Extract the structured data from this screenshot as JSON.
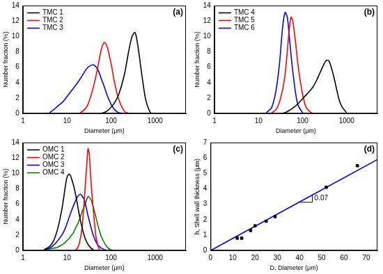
{
  "chart_data": [
    {
      "type": "line",
      "title": "(a)",
      "x_label": "Diameter (μm)",
      "y_label": "Number fraction (%)",
      "log": "x",
      "grid": false,
      "legend": "upper left",
      "xlim": [
        1,
        5000
      ],
      "xticks": [
        1,
        10,
        100,
        1000
      ],
      "ylim": [
        0,
        14
      ],
      "yticks": [
        0,
        2,
        4,
        6,
        8,
        10,
        12,
        14
      ],
      "x": [
        4,
        5,
        6,
        8,
        10,
        12,
        15,
        20,
        25,
        30,
        40,
        50,
        60,
        70,
        80,
        100,
        120,
        150,
        200,
        250,
        300,
        350,
        400,
        500,
        600,
        700,
        800
      ],
      "series": [
        {
          "name": "TMC 1",
          "color": "#000000",
          "values": [
            null,
            null,
            null,
            null,
            null,
            null,
            null,
            null,
            null,
            null,
            null,
            null,
            0,
            0.15,
            0.3,
            0.8,
            1.4,
            2.5,
            5,
            8,
            10,
            10.5,
            9,
            5,
            2,
            0.7,
            0
          ]
        },
        {
          "name": "TMC 2",
          "color": "#ff0000",
          "values": [
            null,
            null,
            null,
            null,
            null,
            null,
            null,
            0.1,
            0.5,
            1.2,
            3.5,
            6,
            8.3,
            9.2,
            8.8,
            6.5,
            4,
            1.8,
            0.3,
            0,
            null,
            null,
            null,
            null,
            null,
            null,
            null
          ]
        },
        {
          "name": "TMC 3",
          "color": "#0000ff",
          "values": [
            0.1,
            0.5,
            0.9,
            1.5,
            2.2,
            2.8,
            3.5,
            4.5,
            5.4,
            6,
            6.3,
            5.7,
            4.5,
            3.5,
            2.5,
            1.2,
            0.5,
            0.1,
            0,
            null,
            null,
            null,
            null,
            null,
            null,
            null,
            null
          ]
        }
      ]
    },
    {
      "type": "line",
      "title": "(b)",
      "x_label": "Diameter (μm)",
      "y_label": "Number fraction (%)",
      "log": "x",
      "grid": false,
      "legend": "upper left",
      "xlim": [
        1,
        5000
      ],
      "xticks": [
        1,
        10,
        100,
        1000
      ],
      "ylim": [
        0,
        14
      ],
      "yticks": [
        0,
        2,
        4,
        6,
        8,
        10,
        12,
        14
      ],
      "x": [
        15,
        20,
        25,
        30,
        35,
        40,
        45,
        50,
        55,
        60,
        70,
        80,
        100,
        120,
        150,
        170,
        200,
        250,
        300,
        350,
        400,
        500,
        600,
        700,
        800,
        1000
      ],
      "series": [
        {
          "name": "TMC 4",
          "color": "#000000",
          "values": [
            null,
            null,
            null,
            null,
            0,
            0.1,
            0.25,
            0.4,
            0.55,
            0.7,
            1,
            1.3,
            1.9,
            2.4,
            3,
            3.4,
            4.1,
            5.3,
            6.3,
            6.9,
            6.8,
            5,
            3,
            1.5,
            0.8,
            0.1
          ]
        },
        {
          "name": "TMC 5",
          "color": "#ff0000",
          "values": [
            null,
            0.1,
            0.5,
            1.5,
            3,
            5,
            8,
            11,
            12.5,
            12,
            9,
            6,
            2.5,
            0.8,
            0.2,
            0,
            null,
            null,
            null,
            null,
            null,
            null,
            null,
            null,
            null,
            null
          ]
        },
        {
          "name": "TMC 6",
          "color": "#0000ff",
          "values": [
            0.1,
            0.8,
            3,
            6.5,
            11,
            13.1,
            12.5,
            10,
            7.5,
            5.5,
            2.5,
            1,
            0.1,
            null,
            null,
            null,
            null,
            null,
            null,
            null,
            null,
            null,
            null,
            null,
            null,
            null
          ]
        }
      ]
    },
    {
      "type": "line",
      "title": "(c)",
      "x_label": "Diameter (μm)",
      "y_label": "Number fraction (%)",
      "log": "x",
      "grid": false,
      "legend": "upper left",
      "xlim": [
        1,
        5000
      ],
      "xticks": [
        1,
        10,
        100,
        1000
      ],
      "ylim": [
        0,
        14
      ],
      "yticks": [
        0,
        2,
        4,
        6,
        8,
        10,
        12,
        14
      ],
      "x": [
        3,
        4,
        5,
        6,
        7,
        8,
        9,
        10,
        11,
        12,
        14,
        15,
        16,
        18,
        20,
        22,
        25,
        28,
        30,
        32,
        35,
        40,
        45,
        50,
        55,
        60,
        80,
        100,
        120
      ],
      "series": [
        {
          "name": "OMC 1",
          "color": "#000000",
          "values": [
            0.1,
            0.5,
            1.3,
            2.6,
            4.2,
            6,
            8,
            9.5,
            9.9,
            9.7,
            8.5,
            7.8,
            7,
            5.4,
            4,
            3,
            1.8,
            1.1,
            0.8,
            0.6,
            0.3,
            0.1,
            null,
            null,
            null,
            null,
            null,
            null,
            null
          ]
        },
        {
          "name": "OMC 2",
          "color": "#ff0000",
          "values": [
            null,
            null,
            null,
            null,
            null,
            null,
            null,
            null,
            null,
            null,
            null,
            0,
            0.1,
            0.5,
            1.5,
            3,
            7,
            11,
            13.2,
            12.5,
            9,
            5,
            2,
            0.7,
            0,
            null,
            null,
            null,
            null
          ]
        },
        {
          "name": "OMC 3",
          "color": "#0000ff",
          "values": [
            0.1,
            0.3,
            0.7,
            1.2,
            1.7,
            2.2,
            2.8,
            3.5,
            4.2,
            4.8,
            5.8,
            6.2,
            6.6,
            7.1,
            7.3,
            7.1,
            6.5,
            5.3,
            4.5,
            3.9,
            3,
            1.9,
            1.2,
            0.7,
            0.5,
            0.3,
            0,
            null,
            null
          ]
        },
        {
          "name": "OMC 4",
          "color": "#008000",
          "values": [
            0.1,
            0.2,
            0.3,
            0.4,
            0.6,
            0.8,
            1,
            1.3,
            1.5,
            1.8,
            2.3,
            2.7,
            3,
            3.6,
            4.3,
            5,
            5.8,
            6.6,
            7,
            6.9,
            6.6,
            5.5,
            4.4,
            3.3,
            2.5,
            1.8,
            0.5,
            0.1,
            0
          ]
        }
      ]
    },
    {
      "type": "scatter",
      "title": "(d)",
      "x_label": "D, Diameter (μm)",
      "y_label": "h, Shell wall thickness (μm)",
      "grid": false,
      "annotations": [
        "0.07"
      ],
      "xlim": [
        0,
        75
      ],
      "xticks": [
        0,
        10,
        20,
        30,
        40,
        50,
        60,
        70
      ],
      "ylim": [
        0,
        7
      ],
      "yticks": [
        0,
        1,
        2,
        3,
        4,
        5,
        6,
        7
      ],
      "series": [
        {
          "type": "scatter",
          "color": "#000000",
          "marker": "square",
          "x": [
            12,
            14,
            18,
            20,
            25,
            29,
            52,
            66
          ],
          "values": [
            0.8,
            0.8,
            1.3,
            1.6,
            1.9,
            2.2,
            4.1,
            5.5
          ]
        },
        {
          "type": "line",
          "color": "#0000ff",
          "line_style": "solid",
          "x": [
            0,
            75
          ],
          "values": [
            0,
            5.9
          ]
        }
      ]
    }
  ]
}
